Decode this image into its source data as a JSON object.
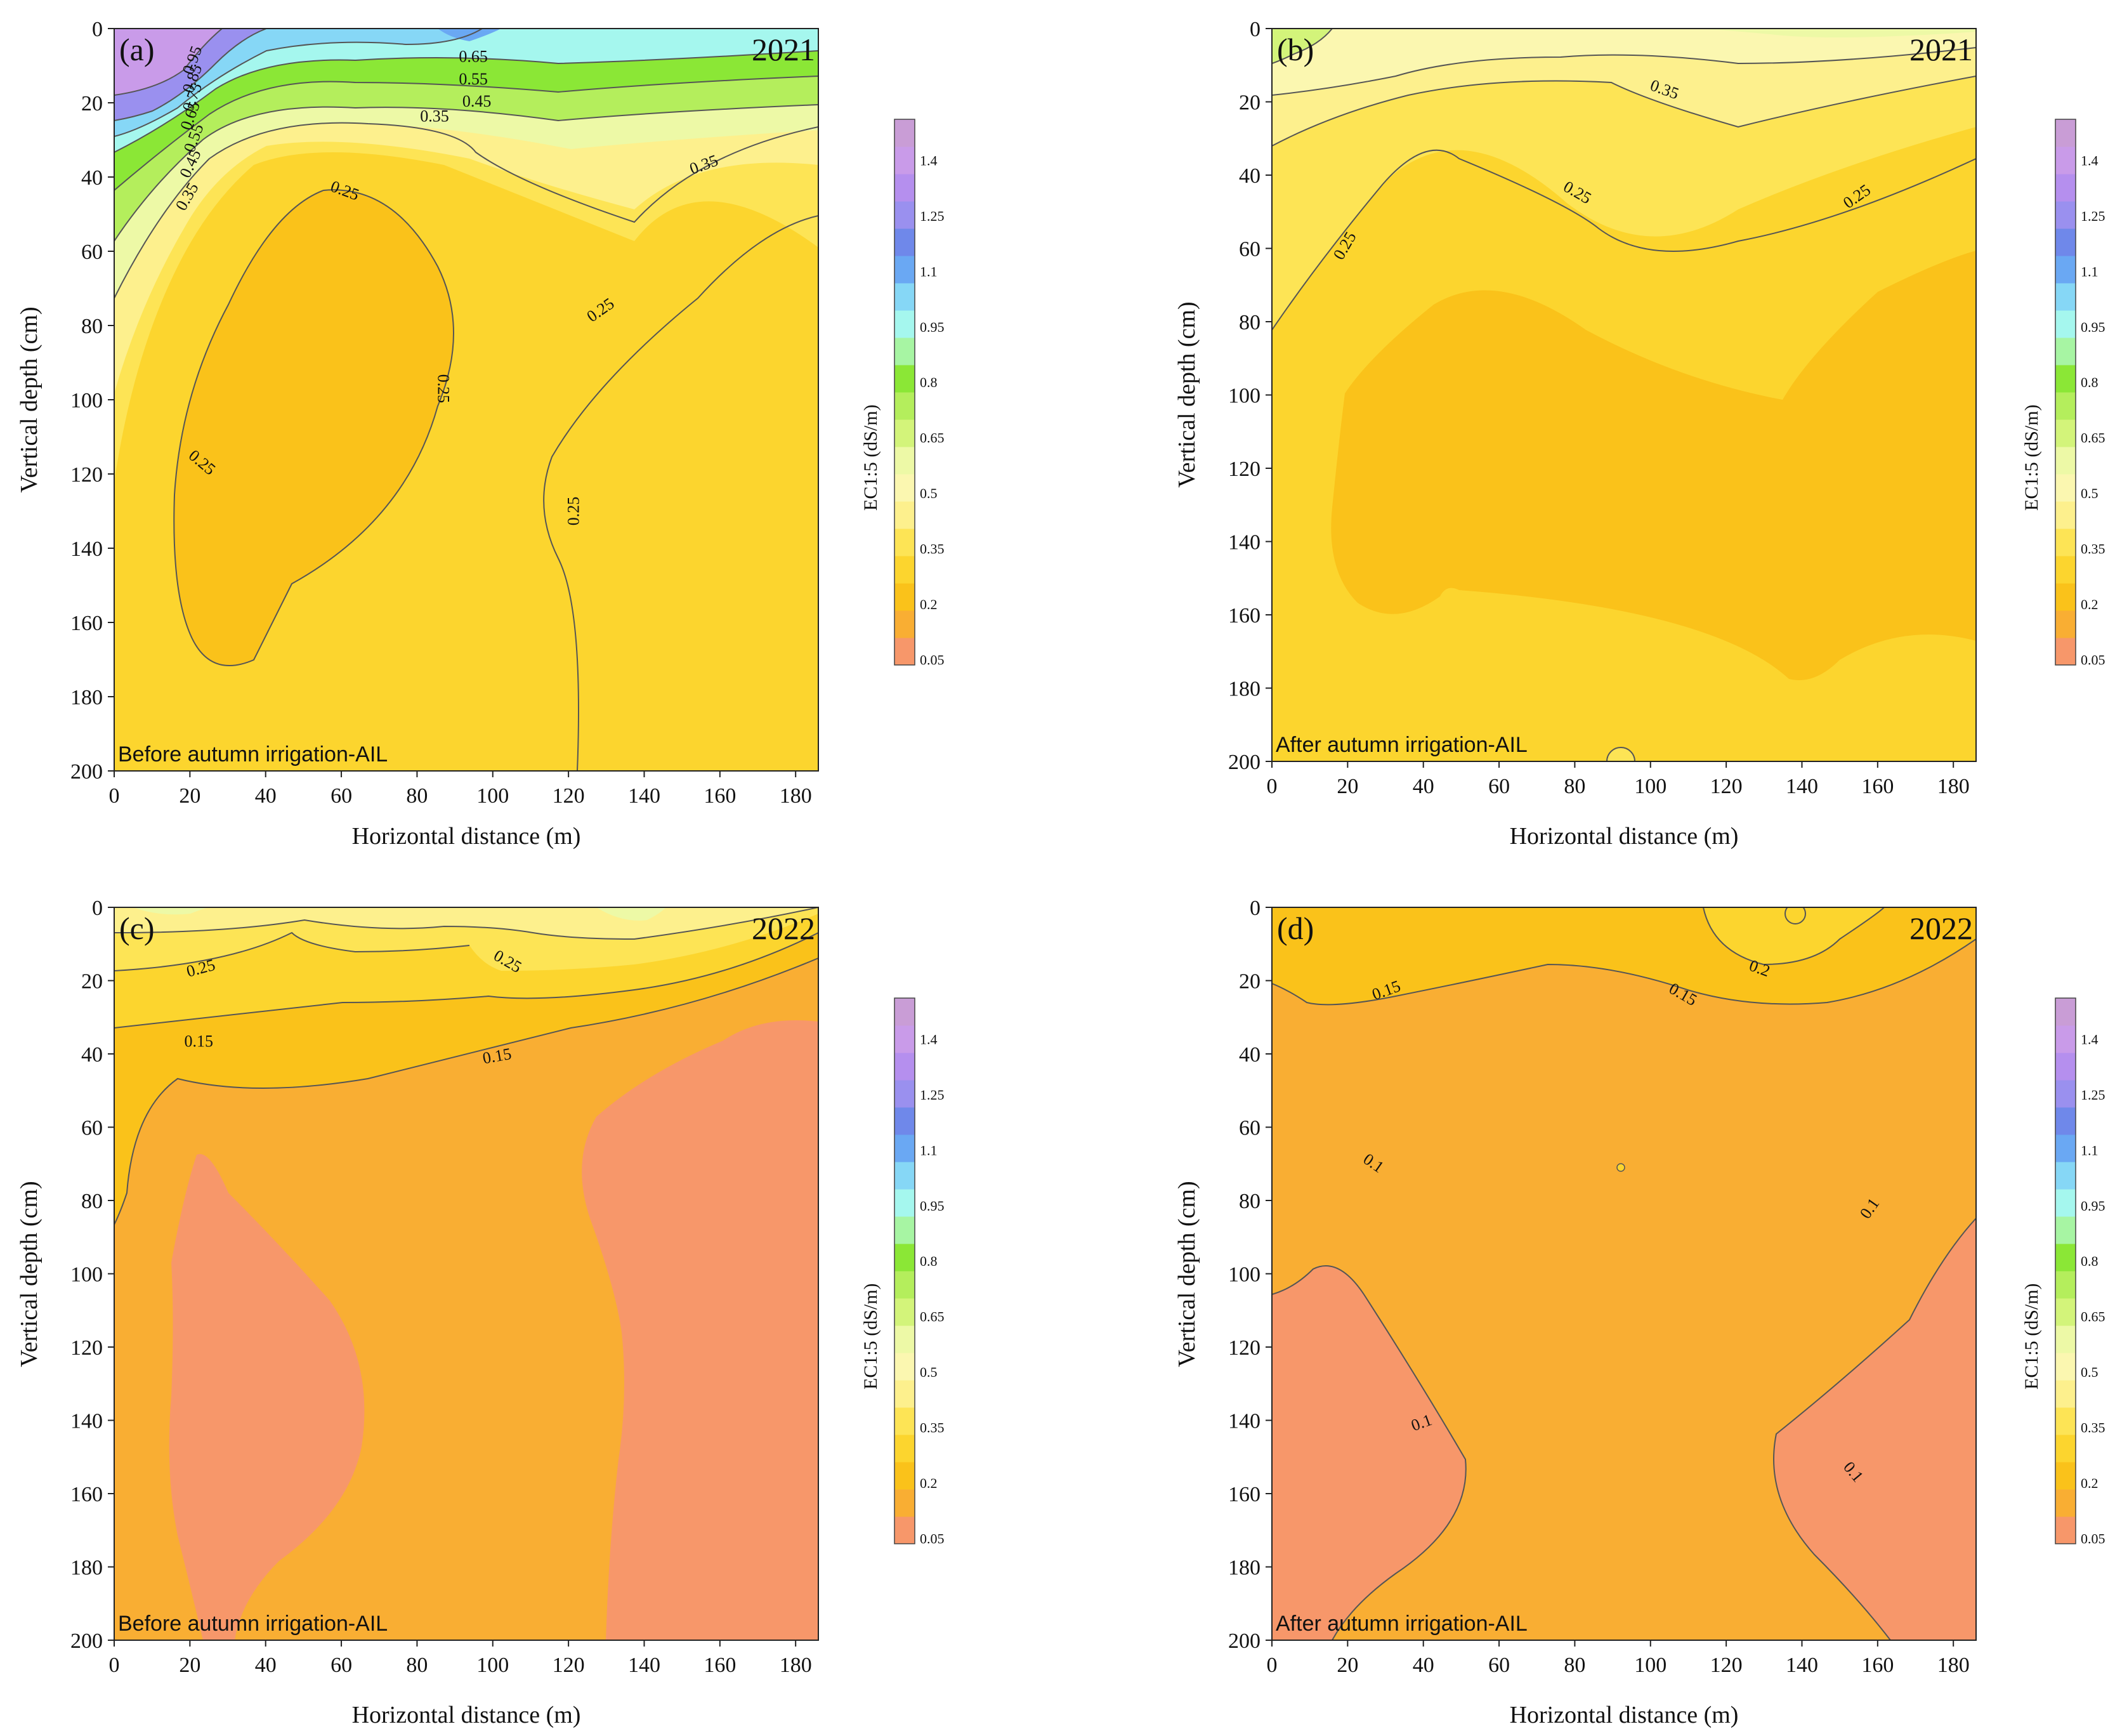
{
  "chart_data": [
    {
      "type": "heatmap",
      "panel": "(a)",
      "year": "2021",
      "note": "Before autumn irrigation-AIL",
      "xlabel": "Horizontal distance (m)",
      "ylabel": "Vertical depth (cm)",
      "xlim": [
        0,
        186
      ],
      "ylim": [
        0,
        200
      ],
      "x_ticks": [
        "0",
        "20",
        "40",
        "60",
        "80",
        "100",
        "120",
        "140",
        "160",
        "180"
      ],
      "y_ticks": [
        "0",
        "20",
        "40",
        "60",
        "80",
        "100",
        "120",
        "140",
        "160",
        "180",
        "200"
      ],
      "contour_labels": [
        "0.95",
        "0.85",
        "0.75",
        "0.65",
        "0.55",
        "0.45",
        "0.35",
        "0.65",
        "0.55",
        "0.45",
        "0.35",
        "0.35",
        "0.25",
        "0.25",
        "0.25",
        "0.25",
        "0.25"
      ]
    },
    {
      "type": "heatmap",
      "panel": "(b)",
      "year": "2021",
      "note": "After autumn irrigation-AIL",
      "xlabel": "Horizontal distance (m)",
      "ylabel": "Vertical depth (cm)",
      "xlim": [
        0,
        186
      ],
      "ylim": [
        0,
        200
      ],
      "x_ticks": [
        "0",
        "20",
        "40",
        "60",
        "80",
        "100",
        "120",
        "140",
        "160",
        "180"
      ],
      "y_ticks": [
        "0",
        "20",
        "40",
        "60",
        "80",
        "100",
        "120",
        "140",
        "160",
        "180",
        "200"
      ],
      "contour_labels": [
        "0.35",
        "0.25",
        "0.25",
        "0.25"
      ]
    },
    {
      "type": "heatmap",
      "panel": "(c)",
      "year": "2022",
      "note": "Before autumn irrigation-AIL",
      "xlabel": "Horizontal distance (m)",
      "ylabel": "Vertical depth (cm)",
      "xlim": [
        0,
        186
      ],
      "ylim": [
        0,
        200
      ],
      "x_ticks": [
        "0",
        "20",
        "40",
        "60",
        "80",
        "100",
        "120",
        "140",
        "160",
        "180"
      ],
      "y_ticks": [
        "0",
        "20",
        "40",
        "60",
        "80",
        "100",
        "120",
        "140",
        "160",
        "180",
        "200"
      ],
      "contour_labels": [
        "0.25",
        "0.25",
        "0.15",
        "0.15"
      ]
    },
    {
      "type": "heatmap",
      "panel": "(d)",
      "year": "2022",
      "note": "After autumn irrigation-AIL",
      "xlabel": "Horizontal distance (m)",
      "ylabel": "Vertical depth (cm)",
      "xlim": [
        0,
        186
      ],
      "ylim": [
        0,
        200
      ],
      "x_ticks": [
        "0",
        "20",
        "40",
        "60",
        "80",
        "100",
        "120",
        "140",
        "160",
        "180"
      ],
      "y_ticks": [
        "0",
        "20",
        "40",
        "60",
        "80",
        "100",
        "120",
        "140",
        "160",
        "180",
        "200"
      ],
      "contour_labels": [
        "0.2",
        "0.15",
        "0.15",
        "0.1",
        "0.1",
        "0.1",
        "0.1"
      ]
    }
  ],
  "colorbar": {
    "title": "EC1:5 (dS/m)",
    "labels": [
      "1.4",
      "1.25",
      "1.1",
      "0.95",
      "0.8",
      "0.65",
      "0.5",
      "0.35",
      "0.2",
      "0.05"
    ],
    "colors": [
      "#f7976a",
      "#f9ae33",
      "#fac21a",
      "#fcd52e",
      "#fde455",
      "#fdf08d",
      "#fbf7b0",
      "#edf9a6",
      "#d3f47a",
      "#b4ee5c",
      "#8be736",
      "#a7f5a3",
      "#a5f7ee",
      "#86d7f6",
      "#6aa8f3",
      "#6f88ea",
      "#9a90ef",
      "#b58fee",
      "#c99be9",
      "#c99dd6"
    ]
  }
}
